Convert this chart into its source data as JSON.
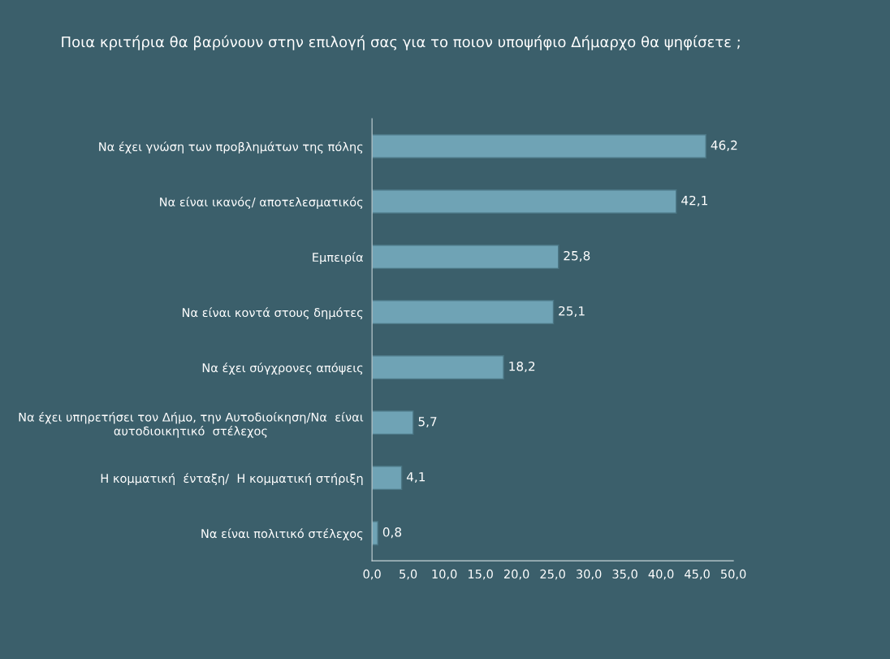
{
  "chart_data": {
    "type": "bar",
    "orientation": "horizontal",
    "title": "Ποια κριτήρια θα βαρύνουν στην επιλογή σας για το ποιον υποψήφιο Δήμαρχο θα ψηφίσετε ;",
    "categories": [
      "Να έχει γνώση των προβλημάτων της πόλης",
      "Να είναι ικανός/ αποτελεσματικός",
      "Εμπειρία",
      "Να είναι κοντά στους δημότες",
      "Να έχει σύγχρονες απόψεις",
      "Να έχει υπηρετήσει τον Δήμο, την Αυτοδιοίκηση/Να  είναι\nαυτοδιοικητικό  στέλεχος",
      "Η κομματική  ένταξη/  Η κομματική στήριξη",
      "Να είναι πολιτικό στέλεχος"
    ],
    "values": [
      46.2,
      42.1,
      25.8,
      25.1,
      18.2,
      5.7,
      4.1,
      0.8
    ],
    "value_labels": [
      "46,2",
      "42,1",
      "25,8",
      "25,1",
      "18,2",
      "5,7",
      "4,1",
      "0,8"
    ],
    "color": "#6fa3b5",
    "xlim": [
      0,
      50
    ],
    "xticks": [
      {
        "value": 0,
        "label": "0,0"
      },
      {
        "value": 5,
        "label": "5,0"
      },
      {
        "value": 10,
        "label": "10,0"
      },
      {
        "value": 15,
        "label": "15,0"
      },
      {
        "value": 20,
        "label": "20,0"
      },
      {
        "value": 25,
        "label": "25,0"
      },
      {
        "value": 30,
        "label": "30,0"
      },
      {
        "value": 35,
        "label": "35,0"
      },
      {
        "value": 40,
        "label": "40,0"
      },
      {
        "value": 45,
        "label": "45,0"
      },
      {
        "value": 50,
        "label": "50,0"
      }
    ],
    "grid": false,
    "legend": false
  }
}
